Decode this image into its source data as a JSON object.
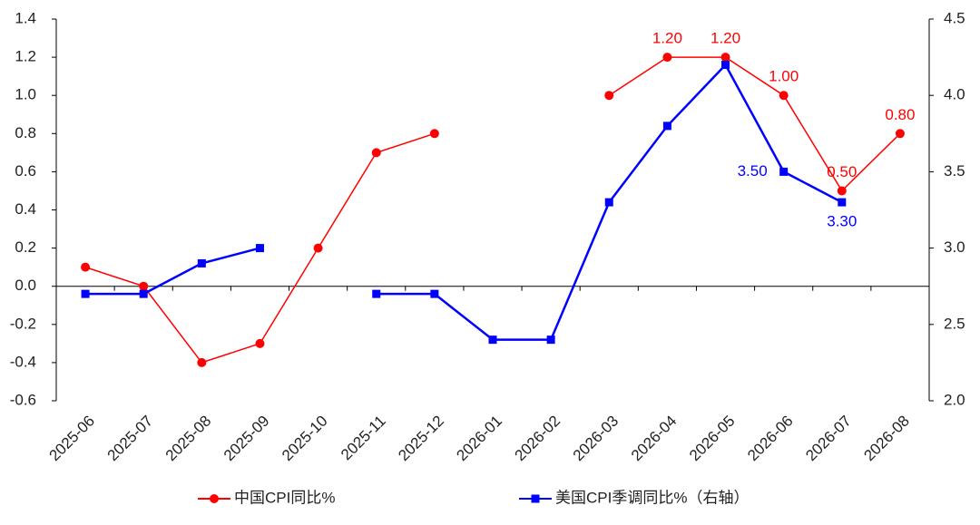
{
  "chart_data": {
    "type": "line",
    "categories": [
      "2025-06",
      "2025-07",
      "2025-08",
      "2025-09",
      "2025-10",
      "2025-11",
      "2025-12",
      "2026-01",
      "2026-02",
      "2026-03",
      "2026-04",
      "2026-05",
      "2026-06",
      "2026-07",
      "2026-08"
    ],
    "series": [
      {
        "name": "中国CPI同比%",
        "color": "#ff0000",
        "marker": "circle",
        "values": [
          0.1,
          0.0,
          -0.4,
          -0.3,
          0.2,
          0.7,
          0.8,
          null,
          null,
          1.0,
          1.2,
          1.2,
          1.0,
          0.5,
          0.8
        ],
        "value_labels": [
          null,
          null,
          null,
          null,
          null,
          null,
          null,
          null,
          null,
          null,
          "1.20",
          "1.20",
          "1.00",
          "0.50",
          "0.80"
        ]
      },
      {
        "name": "美国CPI季调同比%（右轴）",
        "color": "#0000ff",
        "marker": "square",
        "axis": "y2",
        "values": [
          2.7,
          2.7,
          2.9,
          3.0,
          null,
          2.7,
          2.7,
          2.4,
          2.4,
          3.3,
          3.8,
          4.2,
          3.5,
          3.3,
          null
        ],
        "value_labels": [
          null,
          null,
          null,
          null,
          null,
          null,
          null,
          null,
          null,
          null,
          null,
          null,
          "3.50",
          "3.30",
          null
        ]
      }
    ],
    "ylim": [
      -0.6,
      1.4
    ],
    "yticks": [
      -0.6,
      -0.4,
      -0.2,
      {
        "value": 0,
        "label": "0.0"
      },
      0.2,
      0.4,
      0.6,
      0.8,
      {
        "value": 1,
        "label": "1.0"
      },
      1.2,
      1.4
    ],
    "y2lim": [
      2.0,
      4.5
    ],
    "y2ticks": [
      {
        "value": 2,
        "label": "2.0"
      },
      2.5,
      {
        "value": 3,
        "label": "3.0"
      },
      3.5,
      {
        "value": 4,
        "label": "4.0"
      },
      4.5
    ],
    "legend": "bottom"
  }
}
